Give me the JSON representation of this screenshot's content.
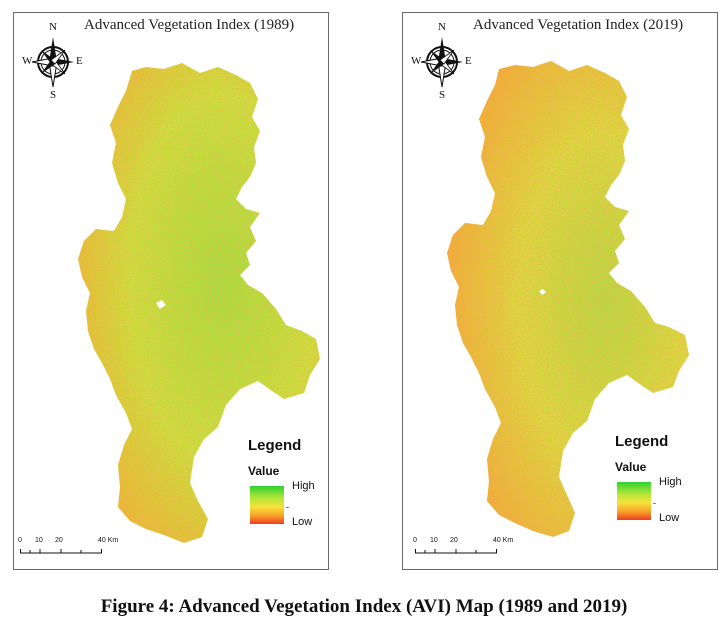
{
  "figure": {
    "caption": "Figure 4: Advanced Vegetation Index (AVI) Map (1989 and 2019)"
  },
  "maps": [
    {
      "title": "Advanced Vegetation Index (1989)",
      "compass": {
        "n": "N",
        "s": "S",
        "e": "E",
        "w": "W"
      },
      "legend": {
        "title": "Legend",
        "subtitle": "Value",
        "high": "High",
        "low": "Low",
        "dash": "-"
      },
      "scale": {
        "t0": "0",
        "t1": "10",
        "t2": "20",
        "t3": "40 Km"
      }
    },
    {
      "title": "Advanced  Vegetation Index (2019)",
      "compass": {
        "n": "N",
        "s": "S",
        "e": "E",
        "w": "W"
      },
      "legend": {
        "title": "Legend",
        "subtitle": "Value",
        "high": "High",
        "low": "Low",
        "dash": "-"
      },
      "scale": {
        "t0": "0",
        "t1": "10",
        "t2": "20",
        "t3": "40 Km"
      }
    }
  ],
  "colors": {
    "high": "#2fd12f",
    "mid": "#f7e23a",
    "low": "#ef3d1f",
    "frame": "#6a6a6a"
  }
}
